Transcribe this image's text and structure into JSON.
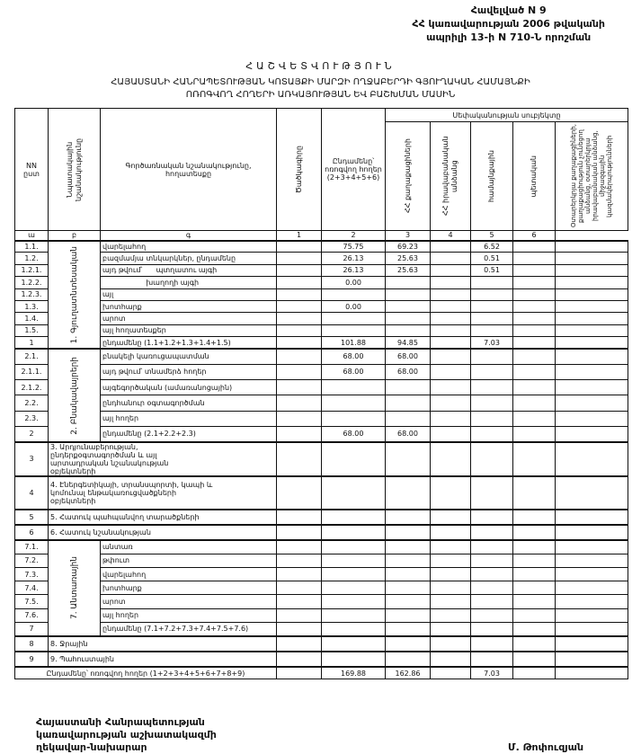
{
  "header": {
    "line1": "Հավելված N 9",
    "line2": "ՀՀ կառավարության 2006 թվականի",
    "line3": "ապրիլի 13-ի N 710-Ն որոշման"
  },
  "title": "ՀԱՇՎԵՏՎՈՒԹՅՈՒՆ",
  "subtitle1": "ՀԱՅԱՍՏԱՆԻ ՀԱՆՐԱՊԵՏՈՒԹՅԱՆ ԿՈՏԱՅՔԻ ՄԱՐԶԻ ՈՂՋԱԲԵՐԴԻ ԳՅՈՒՂԱԿԱՆ ՀԱՄԱՅՆՔԻ",
  "subtitle2": "ՈՌՈԳՎՈՂ ՀՈՂԵՐԻ ԱՌԿԱՅՈՒԹՅԱՆ ԵՎ ԲԱՇԽՄԱՆ ՄԱՍԻՆ",
  "table": {
    "columns": {
      "nn": "NN ըստ",
      "purpose": "Նպատակային նշանակությունը",
      "function": "Գործառնական նշանակությունը, հողատեսքը",
      "code": "Ծածկագիրը",
      "total": "Ընդամենը՝ ոռոգվող հողեր (2+3+4+5+6)",
      "ownership": "Սեփականության սուբյեկտը",
      "c2": "ՀՀ քաղաքացիների",
      "c3": "ՀՀ իրավաբանական անձանց",
      "c4": "համայնքային",
      "c5": "պետական",
      "c6": "Օտարերկրյա քաղաքացիների, քաղաքացիություն չունեցող անձանց, օտարերկրյա իրավաբանական անձանց, միջազգային կազմակերպությունների"
    },
    "index_row": [
      "ա",
      "բ",
      "գ",
      "1",
      "2",
      "3",
      "4",
      "5",
      "6"
    ],
    "sections": [
      {
        "type": "group",
        "purpose": "1. Գյուղատնտեսական",
        "rows": [
          {
            "num": "1.1.",
            "name": "վարելահող",
            "values": [
              "75.75",
              "69.23",
              "",
              "6.52",
              "",
              ""
            ]
          },
          {
            "num": "1.2.",
            "name": "բազմամյա տնկարկներ, ընդամենը",
            "values": [
              "26.13",
              "25.63",
              "",
              "0.51",
              "",
              ""
            ]
          },
          {
            "num": "1.2.1.",
            "name": "այդ թվում՝      պտղատու այգի",
            "values": [
              "26.13",
              "25.63",
              "",
              "0.51",
              "",
              ""
            ]
          },
          {
            "num": "1.2.2.",
            "name": "                   խաղողի այգի",
            "values": [
              "0.00",
              "",
              "",
              "",
              "",
              ""
            ]
          },
          {
            "num": "1.2.3.",
            "name": "այլ",
            "values": [
              "",
              "",
              "",
              "",
              "",
              ""
            ]
          },
          {
            "num": "1.3.",
            "name": "խոտհարք",
            "values": [
              "0.00",
              "",
              "",
              "",
              "",
              ""
            ]
          },
          {
            "num": "1.4.",
            "name": "արոտ",
            "values": [
              "",
              "",
              "",
              "",
              "",
              ""
            ]
          },
          {
            "num": "1.5.",
            "name": "այլ հողատեսքեր",
            "values": [
              "",
              "",
              "",
              "",
              "",
              ""
            ]
          },
          {
            "num": "1",
            "name": "ընդամենը (1.1+1.2+1.3+1.4+1.5)",
            "values": [
              "101.88",
              "94.85",
              "",
              "7.03",
              "",
              ""
            ]
          }
        ]
      },
      {
        "type": "group",
        "purpose": "2. Բնակավայրերի",
        "rows": [
          {
            "num": "2.1.",
            "name": "բնակելի կառուցապատման",
            "values": [
              "68.00",
              "68.00",
              "",
              "",
              "",
              ""
            ]
          },
          {
            "num": "2.1.1.",
            "name": "այդ թվում՝ տնամերձ հողեր",
            "values": [
              "68.00",
              "68.00",
              "",
              "",
              "",
              ""
            ]
          },
          {
            "num": "2.1.2.",
            "name": "այգեգործական (ամառանոցային)",
            "values": [
              "",
              "",
              "",
              "",
              "",
              ""
            ]
          },
          {
            "num": "2.2.",
            "name": "ընդհանուր օգտագործման",
            "values": [
              "",
              "",
              "",
              "",
              "",
              ""
            ]
          },
          {
            "num": "2.3.",
            "name": "այլ հողեր",
            "values": [
              "",
              "",
              "",
              "",
              "",
              ""
            ]
          },
          {
            "num": "2",
            "name": "ընդամենը (2.1+2.2+2.3)",
            "values": [
              "68.00",
              "68.00",
              "",
              "",
              "",
              ""
            ]
          }
        ]
      },
      {
        "type": "single",
        "size": "tall",
        "num": "3",
        "name": "3. Արդյունաբերության, ընդերքօգտագործման և այլ արտադրական նշանակության օբյեկտների",
        "values": [
          "",
          "",
          "",
          "",
          "",
          ""
        ]
      },
      {
        "type": "single",
        "size": "tall",
        "num": "4",
        "name": "4. Էներգետիկայի, տրանսպորտի, կապի և կոմունալ ենթակառուցվածքների օբյեկտների",
        "values": [
          "",
          "",
          "",
          "",
          "",
          ""
        ]
      },
      {
        "type": "single",
        "num": "5",
        "name": "5. Հատուկ պահպանվող տարածքների",
        "values": [
          "",
          "",
          "",
          "",
          "",
          ""
        ]
      },
      {
        "type": "single",
        "num": "6",
        "name": "6. Հատուկ նշանակության",
        "values": [
          "",
          "",
          "",
          "",
          "",
          ""
        ]
      },
      {
        "type": "group",
        "purpose": "7. Անտառային",
        "rows": [
          {
            "num": "7.1.",
            "name": "անտառ",
            "values": [
              "",
              "",
              "",
              "",
              "",
              ""
            ]
          },
          {
            "num": "7.2.",
            "name": "թփուտ",
            "values": [
              "",
              "",
              "",
              "",
              "",
              ""
            ]
          },
          {
            "num": "7.3.",
            "name": "վարելահող",
            "values": [
              "",
              "",
              "",
              "",
              "",
              ""
            ]
          },
          {
            "num": "7.4.",
            "name": "խոտհարք",
            "values": [
              "",
              "",
              "",
              "",
              "",
              ""
            ]
          },
          {
            "num": "7.5.",
            "name": "արոտ",
            "values": [
              "",
              "",
              "",
              "",
              "",
              ""
            ]
          },
          {
            "num": "7.6.",
            "name": "այլ հողեր",
            "values": [
              "",
              "",
              "",
              "",
              "",
              ""
            ]
          },
          {
            "num": "7",
            "name": "ընդամենը (7.1+7.2+7.3+7.4+7.5+7.6)",
            "values": [
              "",
              "",
              "",
              "",
              "",
              ""
            ]
          }
        ]
      },
      {
        "type": "single",
        "num": "8",
        "name": "8. Ջրային",
        "values": [
          "",
          "",
          "",
          "",
          "",
          ""
        ]
      },
      {
        "type": "single",
        "num": "9",
        "name": "9. Պահուստային",
        "values": [
          "",
          "",
          "",
          "",
          "",
          ""
        ]
      },
      {
        "type": "total",
        "name": "Ընդամենը՝ ոռոգվող հողեր (1+2+3+4+5+6+7+8+9)",
        "values": [
          "169.88",
          "162.86",
          "",
          "7.03",
          "",
          ""
        ]
      }
    ]
  },
  "signature": {
    "position_line1": "Հայաստանի Հանրապետության",
    "position_line2": "կառավարության աշխատակազմի",
    "position_line3": "ղեկավար-նախարար",
    "name": "Մ. Թոփուզյան"
  }
}
